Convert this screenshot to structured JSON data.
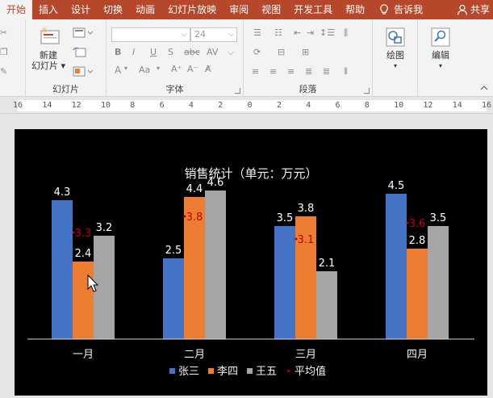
{
  "tabs": [
    {
      "label": "开始",
      "active": true
    },
    {
      "label": "插入"
    },
    {
      "label": "设计"
    },
    {
      "label": "切换"
    },
    {
      "label": "动画"
    },
    {
      "label": "幻灯片放映"
    },
    {
      "label": "审阅"
    },
    {
      "label": "视图"
    },
    {
      "label": "开发工具"
    },
    {
      "label": "帮助"
    }
  ],
  "tell_me": "告诉我",
  "share": "共享",
  "ribbon": {
    "slides_group": {
      "label": "幻灯片",
      "new_slide": "新建",
      "new_slide_2": "幻灯片"
    },
    "font_group": {
      "label": "字体",
      "font_size": "24",
      "btn_b": "B",
      "btn_i": "I",
      "btn_u": "U",
      "btn_s": "S",
      "btn_abc": "abc",
      "btn_av": "AV",
      "btn_aa": "Aa",
      "btn_a": "A"
    },
    "paragraph_group": {
      "label": "段落"
    },
    "drawing": {
      "label": "绘图"
    },
    "editing": {
      "label": "编辑"
    }
  },
  "ruler": {
    "ticks": [
      "16",
      "14",
      "12",
      "10",
      "8",
      "6",
      "4",
      "2",
      "0",
      "2",
      "4",
      "6",
      "8",
      "10",
      "12",
      "14",
      "16"
    ]
  },
  "colors": {
    "tabbar": "#b7472a",
    "series_zhang": "#4472c4",
    "series_li": "#ed7d31",
    "series_wang": "#a5a5a5",
    "average": "#c00000"
  },
  "chart_data": {
    "type": "bar",
    "title": "销售统计（单元：万元）",
    "categories": [
      "一月",
      "二月",
      "三月",
      "四月"
    ],
    "series": [
      {
        "name": "张三",
        "values": [
          4.3,
          2.5,
          3.5,
          4.5
        ]
      },
      {
        "name": "李四",
        "values": [
          2.4,
          4.4,
          3.8,
          2.8
        ]
      },
      {
        "name": "王五",
        "values": [
          3.2,
          4.6,
          2.1,
          3.5
        ]
      }
    ],
    "average": {
      "name": "平均值",
      "values": [
        3.3,
        3.8,
        3.1,
        3.6
      ]
    },
    "ylim": [
      0,
      5
    ],
    "legend": "bottom",
    "grid": false
  }
}
